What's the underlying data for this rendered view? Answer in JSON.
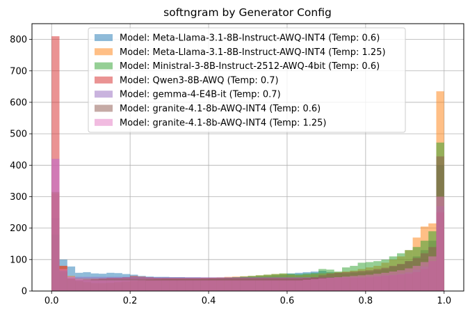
{
  "chart_data": {
    "type": "bar",
    "title": "softngram by Generator Config",
    "xlabel": "",
    "ylabel": "",
    "xlim": [
      -0.05,
      1.05
    ],
    "ylim": [
      0,
      850
    ],
    "xticks": [
      0.0,
      0.2,
      0.4,
      0.6,
      0.8,
      1.0
    ],
    "xtick_labels": [
      "0.0",
      "0.2",
      "0.4",
      "0.6",
      "0.8",
      "1.0"
    ],
    "yticks": [
      0,
      100,
      200,
      300,
      400,
      500,
      600,
      700,
      800
    ],
    "ytick_labels": [
      "0",
      "100",
      "200",
      "300",
      "400",
      "500",
      "600",
      "700",
      "800"
    ],
    "grid": true,
    "legend_position": "top-center",
    "bins": 50,
    "bin_range": [
      0,
      1
    ],
    "bar_alpha": 0.5,
    "series": [
      {
        "name": "Model: Meta-Llama-3.1-8B-Instruct-AWQ-INT4 (Temp: 0.6)",
        "color": "#1f77b4",
        "values": [
          232,
          100,
          78,
          58,
          60,
          56,
          55,
          58,
          57,
          54,
          52,
          48,
          46,
          45,
          45,
          44,
          44,
          43,
          43,
          42,
          42,
          42,
          42,
          43,
          45,
          46,
          47,
          48,
          50,
          52,
          56,
          58,
          60,
          62,
          64,
          60,
          58,
          56,
          58,
          60,
          62,
          66,
          70,
          78,
          85,
          95,
          110,
          130,
          160,
          400
        ]
      },
      {
        "name": "Model: Meta-Llama-3.1-8B-Instruct-AWQ-INT4 (Temp: 1.25)",
        "color": "#ff7f0e",
        "values": [
          310,
          80,
          48,
          40,
          40,
          40,
          40,
          40,
          40,
          40,
          40,
          40,
          40,
          40,
          40,
          40,
          40,
          40,
          40,
          41,
          42,
          43,
          45,
          46,
          47,
          48,
          50,
          52,
          54,
          55,
          52,
          50,
          52,
          54,
          56,
          58,
          60,
          62,
          65,
          70,
          75,
          80,
          90,
          100,
          110,
          130,
          170,
          205,
          215,
          635
        ]
      },
      {
        "name": "Model: Ministral-3-8B-Instruct-2512-AWQ-4bit (Temp: 0.6)",
        "color": "#2ca02c",
        "values": [
          180,
          60,
          38,
          35,
          35,
          36,
          38,
          38,
          38,
          38,
          38,
          38,
          38,
          38,
          38,
          38,
          38,
          38,
          38,
          38,
          39,
          40,
          42,
          44,
          46,
          48,
          50,
          52,
          54,
          56,
          55,
          54,
          56,
          58,
          70,
          68,
          62,
          75,
          80,
          90,
          92,
          95,
          100,
          110,
          120,
          130,
          140,
          160,
          190,
          472
        ]
      },
      {
        "name": "Model: Qwen3-8B-AWQ (Temp: 0.7)",
        "color": "#d62728",
        "values": [
          810,
          80,
          40,
          35,
          36,
          38,
          40,
          42,
          42,
          44,
          48,
          46,
          44,
          42,
          42,
          42,
          42,
          42,
          42,
          42,
          42,
          42,
          42,
          42,
          42,
          42,
          42,
          42,
          42,
          42,
          42,
          42,
          42,
          42,
          42,
          42,
          42,
          42,
          42,
          42,
          44,
          46,
          48,
          50,
          52,
          55,
          60,
          70,
          95,
          250
        ]
      },
      {
        "name": "Model: gemma-4-E4B-it (Temp: 0.7)",
        "color": "#9467bd",
        "values": [
          420,
          65,
          45,
          45,
          45,
          45,
          45,
          45,
          45,
          45,
          44,
          44,
          44,
          44,
          44,
          44,
          44,
          44,
          44,
          44,
          44,
          44,
          44,
          44,
          44,
          44,
          44,
          44,
          44,
          44,
          44,
          44,
          44,
          44,
          44,
          44,
          44,
          44,
          44,
          44,
          46,
          48,
          50,
          52,
          55,
          60,
          68,
          78,
          95,
          270
        ]
      },
      {
        "name": "Model: granite-4.1-8b-AWQ-INT4 (Temp: 0.6)",
        "color": "#8c564b",
        "values": [
          315,
          65,
          40,
          32,
          28,
          25,
          25,
          26,
          28,
          30,
          32,
          34,
          36,
          37,
          38,
          38,
          38,
          38,
          38,
          38,
          38,
          38,
          38,
          38,
          38,
          38,
          38,
          38,
          38,
          38,
          38,
          38,
          40,
          44,
          50,
          55,
          58,
          60,
          62,
          64,
          66,
          70,
          74,
          80,
          86,
          95,
          105,
          120,
          140,
          428
        ]
      },
      {
        "name": "Model: granite-4.1-8b-AWQ-INT4 (Temp: 1.25)",
        "color": "#e377c2",
        "values": [
          420,
          70,
          45,
          38,
          35,
          34,
          34,
          34,
          34,
          34,
          34,
          34,
          34,
          34,
          34,
          34,
          34,
          34,
          34,
          34,
          34,
          34,
          34,
          34,
          34,
          34,
          34,
          34,
          34,
          34,
          34,
          34,
          36,
          38,
          40,
          42,
          44,
          46,
          48,
          50,
          52,
          55,
          58,
          62,
          66,
          72,
          80,
          92,
          110,
          300
        ]
      }
    ]
  }
}
